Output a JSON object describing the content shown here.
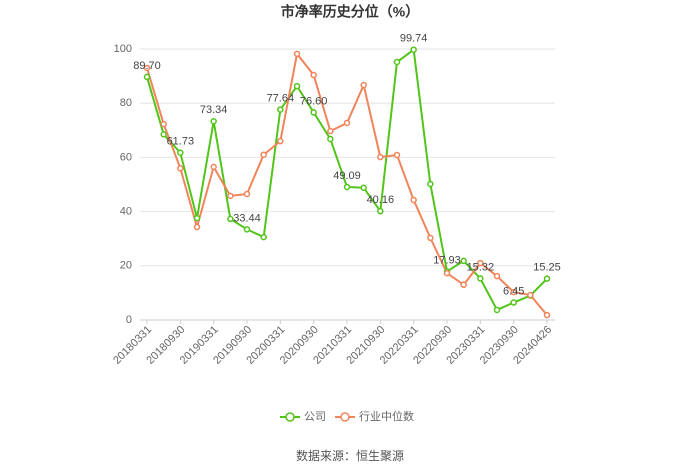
{
  "chart_data": {
    "type": "line",
    "title": "市净率历史分位（%）",
    "source": "数据来源：恒生聚源",
    "categories": [
      "20180331",
      null,
      "20180930",
      null,
      "20190331",
      null,
      "20190930",
      null,
      "20200331",
      null,
      "20200930",
      null,
      "20210331",
      null,
      "20210930",
      null,
      "20220331",
      null,
      "20220930",
      null,
      "20230331",
      null,
      "20230930",
      null,
      "20240426"
    ],
    "ylim": [
      0,
      100
    ],
    "yticks": [
      0,
      20,
      40,
      60,
      80,
      100
    ],
    "grid": true,
    "legend": "bottom",
    "series": [
      {
        "name": "公司",
        "color": "#52c41a",
        "values": [
          89.7,
          68.5,
          61.73,
          37.6,
          73.34,
          37.3,
          33.44,
          30.6,
          77.64,
          86.3,
          76.6,
          66.8,
          49.09,
          48.8,
          40.16,
          95.2,
          99.74,
          50.2,
          17.93,
          21.8,
          15.32,
          3.7,
          6.45,
          9.0,
          15.25
        ],
        "value_labels": [
          "89.70",
          null,
          "61.73",
          null,
          "73.34",
          null,
          "33.44",
          null,
          "77.64",
          null,
          "76.60",
          null,
          "49.09",
          null,
          "40.16",
          null,
          "99.74",
          null,
          "17.93",
          null,
          "15.32",
          null,
          "6.45",
          null,
          "15.25"
        ]
      },
      {
        "name": "行业中位数",
        "color": "#f0845a",
        "values": [
          93,
          72.3,
          56,
          34.3,
          56.5,
          45.8,
          46.5,
          61,
          66,
          98.2,
          90.4,
          69.7,
          72.7,
          86.7,
          60.1,
          60.9,
          44.3,
          30.3,
          17.3,
          13,
          21,
          16.2,
          10.3,
          9.2,
          1.8
        ]
      }
    ]
  }
}
